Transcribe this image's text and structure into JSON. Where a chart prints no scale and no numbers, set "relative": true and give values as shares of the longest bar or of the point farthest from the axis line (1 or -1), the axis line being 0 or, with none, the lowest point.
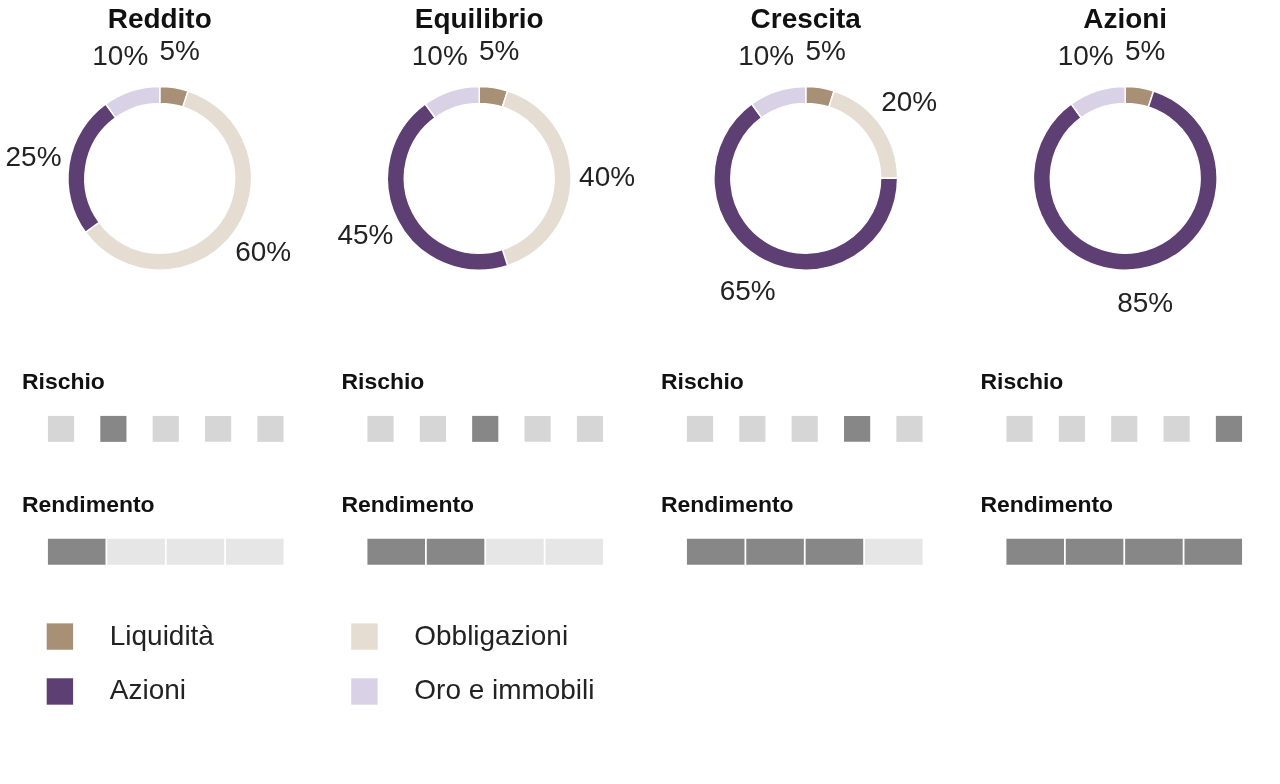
{
  "chart_data": [
    {
      "type": "donut",
      "title": "Reddito",
      "categories": [
        "Liquidità",
        "Obbligazioni",
        "Azioni",
        "Oro e immobili"
      ],
      "values": [
        5,
        60,
        25,
        10
      ],
      "value_labels": [
        "5%",
        "60%",
        "25%",
        "10%"
      ],
      "colors": [
        "#a89077",
        "#e6ddd2",
        "#5e3f73",
        "#d9d2e6"
      ],
      "legend": "bottom"
    },
    {
      "type": "donut",
      "title": "Equilibrio",
      "categories": [
        null,
        null,
        null,
        null
      ],
      "values": [
        5,
        40,
        45,
        10
      ],
      "value_labels": [
        "5%",
        "40%",
        "45%",
        "10%"
      ],
      "colors": [
        "#a89077",
        "#e6ddd2",
        "#5e3f73",
        "#d9d2e6"
      ]
    },
    {
      "type": "donut",
      "title": "Crescita",
      "categories": [
        null,
        null,
        null,
        null
      ],
      "values": [
        5,
        20,
        65,
        10
      ],
      "value_labels": [
        "5%",
        "20%",
        "65%",
        "10%"
      ],
      "colors": [
        "#a89077",
        "#e6ddd2",
        "#5e3f73",
        "#d9d2e6"
      ]
    },
    {
      "type": "donut",
      "title": "Azioni",
      "categories": [
        null,
        null,
        null
      ],
      "values": [
        5,
        85,
        10
      ],
      "value_labels": [
        "5%",
        "85%",
        "10%"
      ],
      "colors": [
        "#a89077",
        "#5e3f73",
        "#d9d2e6"
      ]
    },
    {
      "type": "bar",
      "title": "Rischio",
      "relative": true,
      "categories": [
        null,
        null,
        null,
        null,
        null
      ],
      "values": [
        1,
        1,
        1,
        1,
        1
      ],
      "colors": [
        "#d6d6d6",
        "#878787",
        "#d6d6d6",
        "#d6d6d6",
        "#d6d6d6"
      ]
    },
    {
      "type": "bar",
      "title": "Rischio",
      "relative": true,
      "categories": [
        null,
        null,
        null,
        null,
        null
      ],
      "values": [
        1,
        1,
        1,
        1,
        1
      ],
      "colors": [
        "#d6d6d6",
        "#d6d6d6",
        "#878787",
        "#d6d6d6",
        "#d6d6d6"
      ]
    },
    {
      "type": "bar",
      "title": "Rischio",
      "relative": true,
      "categories": [
        null,
        null,
        null,
        null,
        null
      ],
      "values": [
        1,
        1,
        1,
        1,
        1
      ],
      "colors": [
        "#d6d6d6",
        "#d6d6d6",
        "#d6d6d6",
        "#878787",
        "#d6d6d6"
      ]
    },
    {
      "type": "bar",
      "title": "Rischio",
      "relative": true,
      "categories": [
        null,
        null,
        null,
        null,
        null
      ],
      "values": [
        1,
        1,
        1,
        1,
        1
      ],
      "colors": [
        "#d6d6d6",
        "#d6d6d6",
        "#d6d6d6",
        "#d6d6d6",
        "#878787"
      ]
    },
    {
      "type": "bar",
      "title": "Rendimento",
      "relative": true,
      "categories": [
        null,
        null,
        null,
        null
      ],
      "values": [
        1,
        1,
        1,
        1
      ],
      "colors": [
        "#878787",
        "#e6e6e6",
        "#e6e6e6",
        "#e6e6e6"
      ]
    },
    {
      "type": "bar",
      "title": "Rendimento",
      "relative": true,
      "categories": [
        null,
        null,
        null,
        null
      ],
      "values": [
        1,
        1,
        1,
        1
      ],
      "colors": [
        "#878787",
        "#878787",
        "#e6e6e6",
        "#e6e6e6"
      ]
    },
    {
      "type": "bar",
      "title": "Rendimento",
      "relative": true,
      "categories": [
        null,
        null,
        null,
        null
      ],
      "values": [
        1,
        1,
        1,
        1
      ],
      "colors": [
        "#878787",
        "#878787",
        "#878787",
        "#e6e6e6"
      ]
    },
    {
      "type": "bar",
      "title": "Rendimento",
      "relative": true,
      "categories": [
        null,
        null,
        null,
        null
      ],
      "values": [
        1,
        1,
        1,
        1
      ],
      "colors": [
        "#878787",
        "#878787",
        "#878787",
        "#878787"
      ]
    }
  ]
}
